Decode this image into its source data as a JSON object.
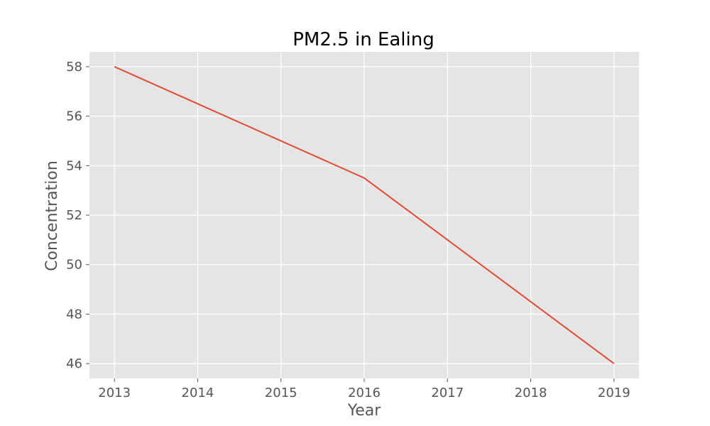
{
  "chart_data": {
    "type": "line",
    "title": "PM2.5 in Ealing",
    "xlabel": "Year",
    "ylabel": "Concentration",
    "x": [
      2013,
      2014,
      2015,
      2016,
      2017,
      2018,
      2019
    ],
    "series": [
      {
        "name": "PM2.5",
        "values": [
          58.0,
          56.5,
          55.0,
          53.5,
          51.0,
          48.5,
          46.0
        ]
      }
    ],
    "x_ticks": [
      "2013",
      "2014",
      "2015",
      "2016",
      "2017",
      "2018",
      "2019"
    ],
    "y_ticks": [
      "46",
      "48",
      "50",
      "52",
      "54",
      "56",
      "58"
    ],
    "y_tick_values": [
      46,
      48,
      50,
      52,
      54,
      56,
      58
    ],
    "xlim": [
      2012.7,
      2019.3
    ],
    "ylim": [
      45.4,
      58.6
    ],
    "grid": true,
    "colors": {
      "background": "#e5e5e5",
      "line": "#e24a33",
      "grid": "#ffffff"
    }
  }
}
